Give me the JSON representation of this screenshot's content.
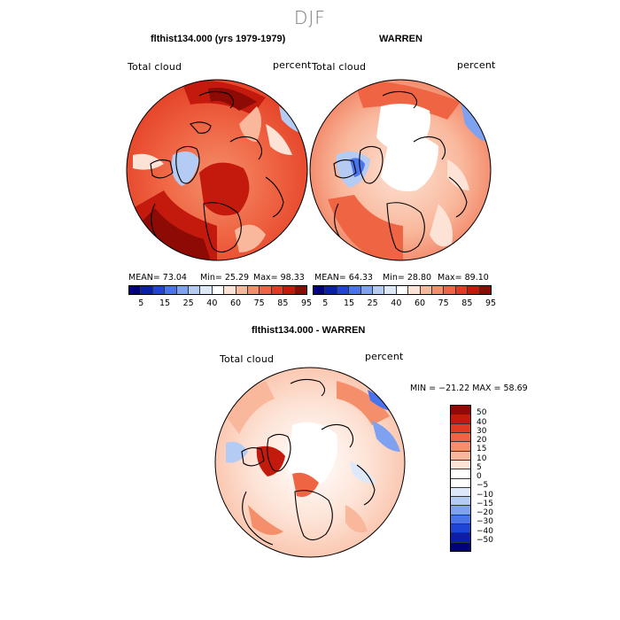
{
  "figure": {
    "season": "DJF"
  },
  "panels": [
    {
      "title": "flthist134.000 (yrs 1979-1979)",
      "variable": "Total cloud",
      "units": "percent",
      "stats": {
        "mean": "MEAN=  73.04",
        "min": "Min=  25.29",
        "max": "Max=  98.33"
      }
    },
    {
      "title": "WARREN",
      "variable": "Total cloud",
      "units": "percent",
      "stats": {
        "mean": "MEAN=  64.33",
        "min": "Min=  28.80",
        "max": "Max=  89.10"
      }
    },
    {
      "title": "flthist134.000 - WARREN",
      "variable": "Total cloud",
      "units": "percent",
      "range": "MIN = −21.22 MAX =  58.69"
    }
  ],
  "colorbars": {
    "abs": {
      "ticks": [
        "5",
        "15",
        "25",
        "40",
        "60",
        "75",
        "85",
        "95"
      ],
      "colors": [
        "#00007f",
        "#0a1fa8",
        "#1f45d6",
        "#4a74ec",
        "#7fa2f0",
        "#b4cbf4",
        "#dde8fa",
        "#ffffff",
        "#fde3d6",
        "#f9b89c",
        "#f58f6b",
        "#ef6543",
        "#e33b22",
        "#c41a0e",
        "#8e0a05"
      ]
    },
    "diff": {
      "ticks": [
        "50",
        "40",
        "30",
        "20",
        "15",
        "10",
        "5",
        "0",
        "−5",
        "−10",
        "−15",
        "−20",
        "−30",
        "−40",
        "−50"
      ],
      "colors": [
        "#8e0a05",
        "#c41a0e",
        "#e33b22",
        "#ef6543",
        "#f58f6b",
        "#f9b89c",
        "#fde3d6",
        "#ffffff",
        "#ffffff",
        "#dde8fa",
        "#b4cbf4",
        "#7fa2f0",
        "#4a74ec",
        "#1f45d6",
        "#0a1fa8",
        "#00007f"
      ]
    }
  }
}
